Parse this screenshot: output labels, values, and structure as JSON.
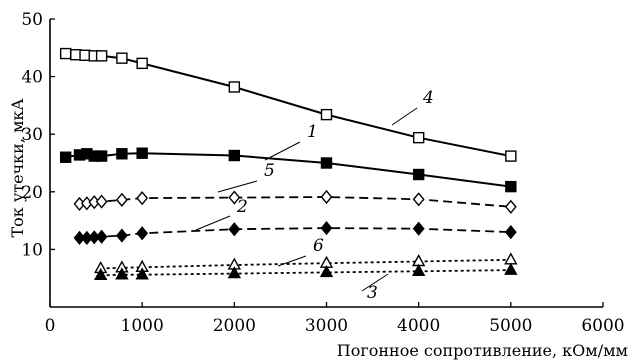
{
  "chart_data": {
    "type": "line",
    "title": "",
    "xlabel": "Погонное сопротивление, кОм/мм",
    "ylabel": "Ток утечки, мкА",
    "xlim": [
      0,
      6000
    ],
    "ylim": [
      0,
      50
    ],
    "x_ticks": [
      0,
      1000,
      2000,
      3000,
      4000,
      5000,
      6000
    ],
    "y_ticks": [
      10,
      20,
      30,
      40,
      50
    ],
    "x_tick_labels": [
      "0",
      "1000",
      "2000",
      "3000",
      "4000",
      "5000",
      "6000"
    ],
    "y_tick_labels": [
      "10",
      "20",
      "30",
      "40",
      "50"
    ],
    "grid": false,
    "legend": "none",
    "series": [
      {
        "name": "4",
        "marker": "square-open",
        "line": "solid",
        "x": [
          170,
          280,
          380,
          480,
          560,
          780,
          1000,
          2000,
          3000,
          4000,
          5000
        ],
        "y": [
          44.0,
          43.8,
          43.7,
          43.6,
          43.6,
          43.2,
          42.3,
          38.2,
          33.4,
          29.4,
          26.2
        ]
      },
      {
        "name": "1",
        "marker": "square-filled",
        "line": "solid",
        "x": [
          170,
          320,
          400,
          480,
          560,
          780,
          1000,
          2000,
          3000,
          4000,
          5000
        ],
        "y": [
          26.0,
          26.4,
          26.6,
          26.2,
          26.2,
          26.6,
          26.7,
          26.3,
          25.0,
          23.0,
          20.9
        ]
      },
      {
        "name": "5",
        "marker": "diamond-open",
        "line": "dashed",
        "x": [
          320,
          400,
          480,
          560,
          780,
          1000,
          2000,
          3000,
          4000,
          5000
        ],
        "y": [
          17.9,
          18.0,
          18.2,
          18.3,
          18.6,
          18.9,
          19.0,
          19.1,
          18.7,
          17.4
        ]
      },
      {
        "name": "2",
        "marker": "diamond-filled",
        "line": "dashed",
        "x": [
          320,
          400,
          480,
          560,
          780,
          1000,
          2000,
          3000,
          4000,
          5000
        ],
        "y": [
          12.0,
          12.0,
          12.1,
          12.2,
          12.4,
          12.8,
          13.5,
          13.7,
          13.6,
          13.0
        ]
      },
      {
        "name": "6",
        "marker": "triangle-open",
        "line": "dotted",
        "x": [
          550,
          780,
          1000,
          2000,
          3000,
          4000,
          5000
        ],
        "y": [
          6.7,
          6.8,
          6.9,
          7.3,
          7.6,
          7.9,
          8.2
        ]
      },
      {
        "name": "3",
        "marker": "triangle-filled",
        "line": "dotted",
        "x": [
          550,
          780,
          1000,
          2000,
          3000,
          4000,
          5000
        ],
        "y": [
          5.5,
          5.6,
          5.6,
          5.8,
          6.0,
          6.2,
          6.4
        ]
      }
    ],
    "curve_labels": [
      "4",
      "1",
      "5",
      "2",
      "6",
      "3"
    ]
  }
}
